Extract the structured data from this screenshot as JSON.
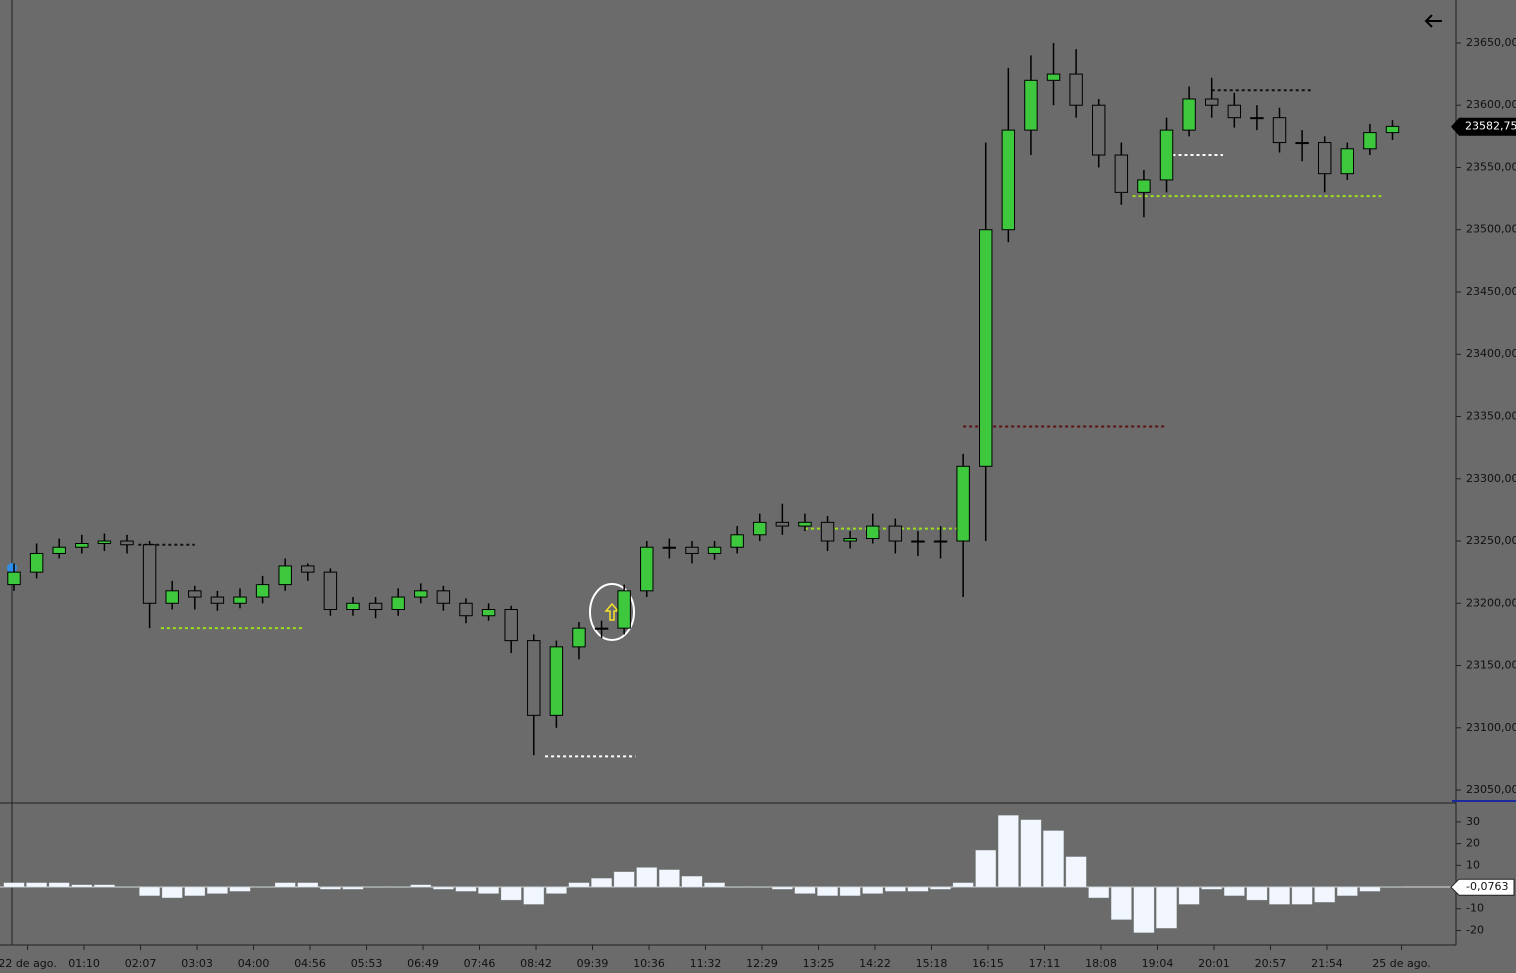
{
  "chart_data": [
    {
      "type": "candlestick",
      "x": [
        0,
        1,
        2,
        3,
        4,
        5,
        6,
        7,
        8,
        9,
        10,
        11,
        12,
        13,
        14,
        15,
        16,
        17,
        18,
        19,
        20,
        21,
        22,
        23,
        24,
        25,
        26,
        27,
        28,
        29,
        30,
        31,
        32,
        33,
        34,
        35,
        36,
        37,
        38,
        39,
        40,
        41,
        42,
        43,
        44,
        45,
        46,
        47,
        48,
        49,
        50,
        51,
        52,
        53,
        54,
        55,
        56,
        57,
        58,
        59,
        60,
        61
      ],
      "open": [
        23215,
        23225,
        23240,
        23245,
        23248,
        23250,
        23247,
        23200,
        23210,
        23205,
        23200,
        23205,
        23215,
        23230,
        23225,
        23195,
        23200,
        23195,
        23205,
        23210,
        23200,
        23190,
        23195,
        23170,
        23110,
        23165,
        23180,
        23180,
        23210,
        23245,
        23245,
        23240,
        23245,
        23255,
        23265,
        23262,
        23265,
        23250,
        23252,
        23262,
        23250,
        23250,
        23250,
        23310,
        23500,
        23580,
        23620,
        23625,
        23600,
        23560,
        23530,
        23540,
        23580,
        23605,
        23600,
        23590,
        23590,
        23570,
        23570,
        23545,
        23565,
        23578
      ],
      "high": [
        23232,
        23248,
        23252,
        23255,
        23256,
        23255,
        23250,
        23218,
        23214,
        23210,
        23212,
        23222,
        23236,
        23232,
        23228,
        23205,
        23205,
        23212,
        23216,
        23214,
        23204,
        23200,
        23198,
        23175,
        23170,
        23185,
        23186,
        23215,
        23250,
        23252,
        23250,
        23250,
        23262,
        23272,
        23280,
        23272,
        23270,
        23258,
        23272,
        23268,
        23258,
        23262,
        23320,
        23570,
        23630,
        23640,
        23650,
        23645,
        23605,
        23570,
        23548,
        23590,
        23615,
        23622,
        23610,
        23600,
        23598,
        23580,
        23575,
        23570,
        23585,
        23588
      ],
      "low": [
        23210,
        23220,
        23236,
        23240,
        23242,
        23240,
        23180,
        23195,
        23195,
        23194,
        23196,
        23200,
        23210,
        23218,
        23190,
        23190,
        23188,
        23190,
        23200,
        23194,
        23184,
        23186,
        23160,
        23078,
        23100,
        23155,
        23172,
        23175,
        23205,
        23236,
        23232,
        23235,
        23240,
        23250,
        23255,
        23258,
        23242,
        23244,
        23248,
        23240,
        23238,
        23236,
        23205,
        23250,
        23490,
        23560,
        23600,
        23590,
        23550,
        23520,
        23510,
        23530,
        23575,
        23590,
        23582,
        23580,
        23562,
        23555,
        23530,
        23540,
        23560,
        23572
      ],
      "close": [
        23225,
        23240,
        23245,
        23248,
        23250,
        23247,
        23200,
        23210,
        23205,
        23200,
        23205,
        23215,
        23230,
        23225,
        23195,
        23200,
        23195,
        23205,
        23210,
        23200,
        23190,
        23195,
        23170,
        23110,
        23165,
        23180,
        23180,
        23210,
        23245,
        23245,
        23240,
        23245,
        23255,
        23265,
        23262,
        23265,
        23250,
        23252,
        23262,
        23250,
        23250,
        23250,
        23310,
        23500,
        23580,
        23620,
        23625,
        23600,
        23560,
        23530,
        23540,
        23580,
        23605,
        23600,
        23590,
        23590,
        23570,
        23570,
        23545,
        23565,
        23578,
        23583
      ],
      "up_color": "#3ec83e",
      "down_color": "#6b6b6b",
      "levels": [
        {
          "price": 23342,
          "from": 42,
          "to": 51,
          "color": "#5a1010"
        },
        {
          "price": 23527,
          "from": 49.5,
          "to": 60.5,
          "color": "#9be21c"
        },
        {
          "price": 23612,
          "from": 53,
          "to": 57.5,
          "color": "#111111"
        },
        {
          "price": 23560,
          "from": 51,
          "to": 53.5,
          "color": "#ffffff"
        },
        {
          "price": 23077,
          "from": 23.5,
          "to": 27.5,
          "color": "#ffffff"
        },
        {
          "price": 23180,
          "from": 6.5,
          "to": 12.8,
          "color": "#9be21c"
        },
        {
          "price": 23247,
          "from": 5.5,
          "to": 8,
          "color": "#111111"
        },
        {
          "price": 23260,
          "from": 35,
          "to": 42,
          "color": "#9be21c"
        }
      ],
      "last_price": {
        "value": 23582.75,
        "label": "23582,75"
      },
      "xlim": [
        -0.62,
        63.81
      ],
      "ylim": [
        23039.6,
        23684.5
      ],
      "yticks": [
        {
          "value": 23050,
          "label": "23050,00"
        },
        {
          "value": 23100,
          "label": "23100,00"
        },
        {
          "value": 23150,
          "label": "23150,00"
        },
        {
          "value": 23200,
          "label": "23200,00"
        },
        {
          "value": 23250,
          "label": "23250,00"
        },
        {
          "value": 23300,
          "label": "23300,00"
        },
        {
          "value": 23350,
          "label": "23350,00"
        },
        {
          "value": 23400,
          "label": "23400,00"
        },
        {
          "value": 23450,
          "label": "23450,00"
        },
        {
          "value": 23500,
          "label": "23500,00"
        },
        {
          "value": 23550,
          "label": "23550,00"
        },
        {
          "value": 23600,
          "label": "23600,00"
        },
        {
          "value": 23650,
          "label": "23650,00"
        }
      ]
    },
    {
      "type": "histogram",
      "x": [
        0,
        1,
        2,
        3,
        4,
        5,
        6,
        7,
        8,
        9,
        10,
        11,
        12,
        13,
        14,
        15,
        16,
        17,
        18,
        19,
        20,
        21,
        22,
        23,
        24,
        25,
        26,
        27,
        28,
        29,
        30,
        31,
        32,
        33,
        34,
        35,
        36,
        37,
        38,
        39,
        40,
        41,
        42,
        43,
        44,
        45,
        46,
        47,
        48,
        49,
        50,
        51,
        52,
        53,
        54,
        55,
        56,
        57,
        58,
        59,
        60,
        61
      ],
      "values": [
        2,
        2,
        2,
        1,
        1,
        0,
        -4,
        -5,
        -4,
        -3,
        -2,
        0,
        2,
        2,
        -1,
        -1,
        0,
        0,
        1,
        -1,
        -2,
        -3,
        -6,
        -8,
        -3,
        2,
        4,
        7,
        9,
        8,
        5,
        2,
        0,
        0,
        -1,
        -3,
        -4,
        -4,
        -3,
        -2,
        -2,
        -1,
        2,
        17,
        33,
        31,
        26,
        14,
        -5,
        -15,
        -21,
        -19,
        -8,
        -1,
        -4,
        -6,
        -8,
        -8,
        -7,
        -4,
        -2,
        0
      ],
      "color": "#f2f6ff",
      "current": {
        "value": -0.0763,
        "label": "-0,0763"
      },
      "xlim": [
        -0.62,
        63.81
      ],
      "ylim": [
        -26.7,
        36.4
      ],
      "yticks": [
        30,
        20,
        10,
        -10,
        -20
      ],
      "xticks": [
        {
          "value": 0.6,
          "label": "22 de ago."
        },
        {
          "value": 3.1,
          "label": "01:10"
        },
        {
          "value": 5.6,
          "label": "02:07"
        },
        {
          "value": 8.1,
          "label": "03:03"
        },
        {
          "value": 10.6,
          "label": "04:00"
        },
        {
          "value": 13.1,
          "label": "04:56"
        },
        {
          "value": 15.6,
          "label": "05:53"
        },
        {
          "value": 18.1,
          "label": "06:49"
        },
        {
          "value": 20.6,
          "label": "07:46"
        },
        {
          "value": 23.1,
          "label": "08:42"
        },
        {
          "value": 25.6,
          "label": "09:39"
        },
        {
          "value": 28.1,
          "label": "10:36"
        },
        {
          "value": 30.6,
          "label": "11:32"
        },
        {
          "value": 33.1,
          "label": "12:29"
        },
        {
          "value": 35.6,
          "label": "13:25"
        },
        {
          "value": 38.1,
          "label": "14:22"
        },
        {
          "value": 40.6,
          "label": "15:18"
        },
        {
          "value": 43.1,
          "label": "16:15"
        },
        {
          "value": 45.6,
          "label": "17:11"
        },
        {
          "value": 48.1,
          "label": "18:08"
        },
        {
          "value": 50.6,
          "label": "19:04"
        },
        {
          "value": 53.1,
          "label": "20:01"
        },
        {
          "value": 55.6,
          "label": "20:57"
        },
        {
          "value": 58.1,
          "label": "21:54"
        },
        {
          "value": 61.4,
          "label": "25 de ago."
        }
      ]
    }
  ]
}
